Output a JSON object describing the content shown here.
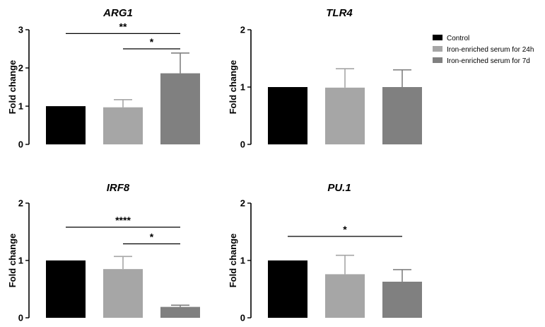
{
  "legend": [
    {
      "label": "Control",
      "color": "#000000"
    },
    {
      "label": "Iron-enriched serum for 24h",
      "color": "#a6a6a6"
    },
    {
      "label": "Iron-enriched serum for 7d",
      "color": "#808080"
    }
  ],
  "chart_data": [
    {
      "type": "bar",
      "title": "ARG1",
      "ylabel": "Fold change",
      "categories": [
        "Control",
        "Iron-enriched serum for 24h",
        "Iron-enriched serum for 7d"
      ],
      "values": [
        1.0,
        0.97,
        1.86
      ],
      "errors": [
        0,
        0.2,
        0.53
      ],
      "ylim": [
        0,
        3
      ],
      "yticks": [
        "0",
        "1",
        "2",
        "3"
      ],
      "significance": [
        {
          "from": 0,
          "to": 2,
          "label": "**",
          "y": 2.9
        },
        {
          "from": 1,
          "to": 2,
          "label": "*",
          "y": 2.5
        }
      ]
    },
    {
      "type": "bar",
      "title": "TLR4",
      "ylabel": "Fold change",
      "categories": [
        "Control",
        "Iron-enriched serum for 24h",
        "Iron-enriched serum for 7d"
      ],
      "values": [
        1.0,
        0.99,
        1.0
      ],
      "errors": [
        0,
        0.33,
        0.3
      ],
      "ylim": [
        0,
        2
      ],
      "yticks": [
        "0",
        "1",
        "2"
      ],
      "significance": []
    },
    {
      "type": "bar",
      "title": "IRF8",
      "ylabel": "Fold change",
      "categories": [
        "Control",
        "Iron-enriched serum for 24h",
        "Iron-enriched serum for 7d"
      ],
      "values": [
        1.0,
        0.85,
        0.19
      ],
      "errors": [
        0,
        0.22,
        0.03
      ],
      "ylim": [
        0,
        2
      ],
      "yticks": [
        "0",
        "1",
        "2"
      ],
      "significance": [
        {
          "from": 0,
          "to": 2,
          "label": "****",
          "y": 1.58
        },
        {
          "from": 1,
          "to": 2,
          "label": "*",
          "y": 1.29
        }
      ]
    },
    {
      "type": "bar",
      "title": "PU.1",
      "ylabel": "Fold change",
      "categories": [
        "Control",
        "Iron-enriched serum for 24h",
        "Iron-enriched serum for 7d"
      ],
      "values": [
        1.0,
        0.76,
        0.63
      ],
      "errors": [
        0,
        0.33,
        0.21
      ],
      "ylim": [
        0,
        2
      ],
      "yticks": [
        "0",
        "1",
        "2"
      ],
      "significance": [
        {
          "from": 0,
          "to": 2,
          "label": "*",
          "y": 1.42
        }
      ]
    }
  ]
}
